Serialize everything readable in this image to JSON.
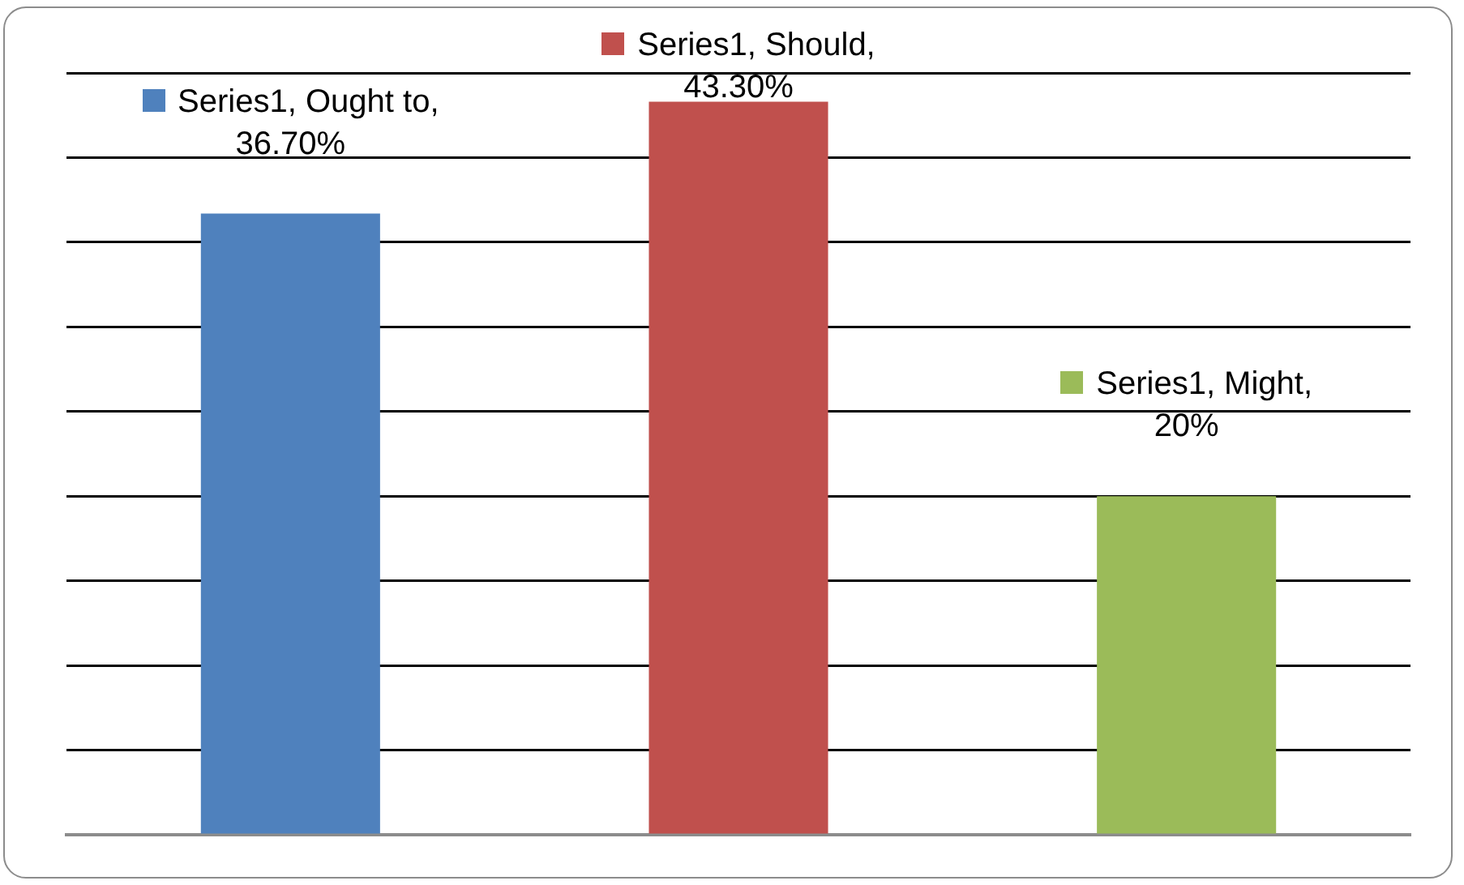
{
  "chart_data": {
    "type": "bar",
    "categories": [
      null,
      null,
      null
    ],
    "series": [
      {
        "colors": [
          "#4f81bd",
          "#c0504d",
          "#9bbb59"
        ],
        "values": [
          36.7,
          43.3,
          20
        ],
        "value_labels": [
          "Series1, Ought to, 36.70%",
          "Series1, Should, 43.30%",
          "Series1, Might, 20%"
        ]
      }
    ],
    "ylim": [
      0,
      45
    ],
    "yticks": [
      {
        "value": 0,
        "label": null
      },
      {
        "value": 5,
        "label": null
      },
      {
        "value": 10,
        "label": null
      },
      {
        "value": 15,
        "label": null
      },
      {
        "value": 20,
        "label": null
      },
      {
        "value": 25,
        "label": null
      },
      {
        "value": 30,
        "label": null
      },
      {
        "value": 35,
        "label": null
      },
      {
        "value": 40,
        "label": null
      },
      {
        "value": 45,
        "label": null
      }
    ],
    "grid": "y",
    "legend": false
  }
}
